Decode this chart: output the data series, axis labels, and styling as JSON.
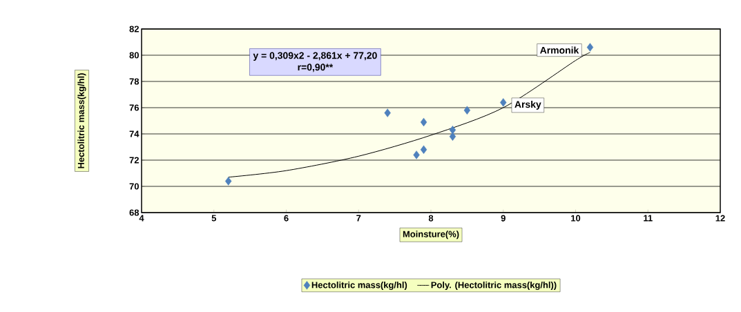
{
  "chart_data": {
    "type": "scatter",
    "xlabel": "Moinsture(%)",
    "ylabel": "Hectolitric mass(kg/hl)",
    "xlim": [
      4,
      12
    ],
    "xticks": [
      4,
      5,
      6,
      7,
      8,
      9,
      10,
      11,
      12
    ],
    "ylim": [
      68,
      82
    ],
    "yticks": [
      68,
      70,
      72,
      74,
      76,
      78,
      80,
      82
    ],
    "grid": "y",
    "legend": "bottom",
    "marker": "diamond",
    "series": [
      {
        "name": "Hectolitric mass(kg/hl)",
        "color": "#4f81bd",
        "x": [
          5.2,
          7.4,
          7.8,
          7.9,
          7.9,
          8.3,
          8.3,
          8.5,
          9.0,
          10.2
        ],
        "values": [
          70.4,
          75.6,
          72.4,
          72.8,
          74.9,
          74.3,
          73.8,
          75.8,
          76.4,
          80.6
        ]
      },
      {
        "name": "Poly. (Hectolitric mass(kg/hl))",
        "type": "line",
        "color": "#000000",
        "marker": "none",
        "x": [
          5.2,
          6,
          7,
          8,
          9,
          10,
          10.2
        ],
        "values": [
          70.7,
          71.2,
          72.3,
          73.9,
          76.0,
          79.6,
          80.2
        ]
      }
    ],
    "annotations": [
      "y = 0,309x2 - 2,861x + 77,20",
      "r=0,90**",
      {
        "text": "Armonik",
        "x": 10.2,
        "y": 80.6
      },
      {
        "text": "Arsky",
        "x": 9.0,
        "y": 76.4
      }
    ]
  }
}
